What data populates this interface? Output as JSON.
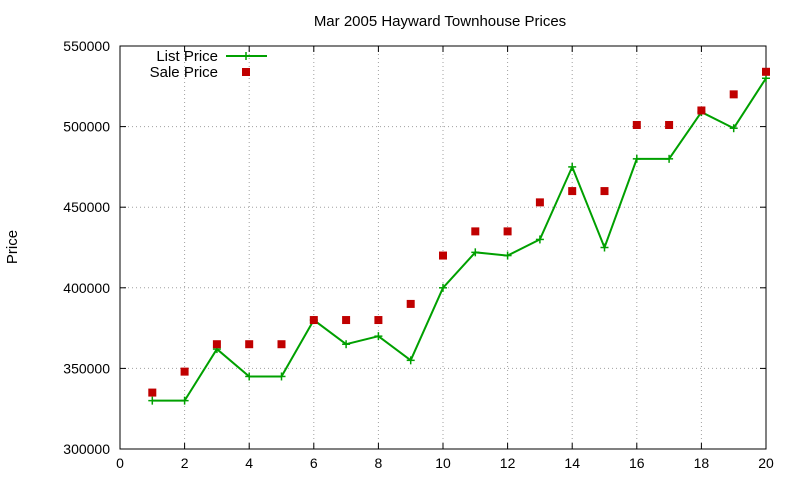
{
  "chart_data": {
    "type": "line",
    "title": "Mar 2005 Hayward Townhouse Prices",
    "xlabel": "",
    "ylabel": "Price",
    "xlim": [
      0,
      20
    ],
    "ylim": [
      300000,
      550000
    ],
    "x_ticks": [
      "0",
      "2",
      "4",
      "6",
      "8",
      "10",
      "12",
      "14",
      "16",
      "18",
      "20"
    ],
    "y_ticks": [
      "300000",
      "350000",
      "400000",
      "450000",
      "500000",
      "550000"
    ],
    "grid": true,
    "legend_position": "top-left",
    "series": [
      {
        "name": "List Price",
        "style": "line-with-plus-markers",
        "color": "#00a000",
        "points": [
          {
            "x": 1,
            "y": 330000
          },
          {
            "x": 2,
            "y": 330000
          },
          {
            "x": 3,
            "y": 362000
          },
          {
            "x": 4,
            "y": 345000
          },
          {
            "x": 5,
            "y": 345000
          },
          {
            "x": 6,
            "y": 380000
          },
          {
            "x": 7,
            "y": 365000
          },
          {
            "x": 8,
            "y": 370000
          },
          {
            "x": 9,
            "y": 355000
          },
          {
            "x": 10,
            "y": 400000
          },
          {
            "x": 11,
            "y": 422000
          },
          {
            "x": 12,
            "y": 420000
          },
          {
            "x": 13,
            "y": 430000
          },
          {
            "x": 14,
            "y": 475000
          },
          {
            "x": 15,
            "y": 425000
          },
          {
            "x": 16,
            "y": 480000
          },
          {
            "x": 17,
            "y": 480000
          },
          {
            "x": 18,
            "y": 509000
          },
          {
            "x": 19,
            "y": 499000
          },
          {
            "x": 20,
            "y": 530000
          }
        ]
      },
      {
        "name": "Sale Price",
        "style": "square-markers",
        "color": "#c00000",
        "points": [
          {
            "x": 1,
            "y": 335000
          },
          {
            "x": 2,
            "y": 348000
          },
          {
            "x": 3,
            "y": 365000
          },
          {
            "x": 4,
            "y": 365000
          },
          {
            "x": 5,
            "y": 365000
          },
          {
            "x": 6,
            "y": 380000
          },
          {
            "x": 7,
            "y": 380000
          },
          {
            "x": 8,
            "y": 380000
          },
          {
            "x": 9,
            "y": 390000
          },
          {
            "x": 10,
            "y": 420000
          },
          {
            "x": 11,
            "y": 435000
          },
          {
            "x": 12,
            "y": 435000
          },
          {
            "x": 13,
            "y": 453000
          },
          {
            "x": 14,
            "y": 460000
          },
          {
            "x": 15,
            "y": 460000
          },
          {
            "x": 16,
            "y": 501000
          },
          {
            "x": 17,
            "y": 501000
          },
          {
            "x": 18,
            "y": 510000
          },
          {
            "x": 19,
            "y": 520000
          },
          {
            "x": 20,
            "y": 534000
          }
        ]
      }
    ]
  }
}
